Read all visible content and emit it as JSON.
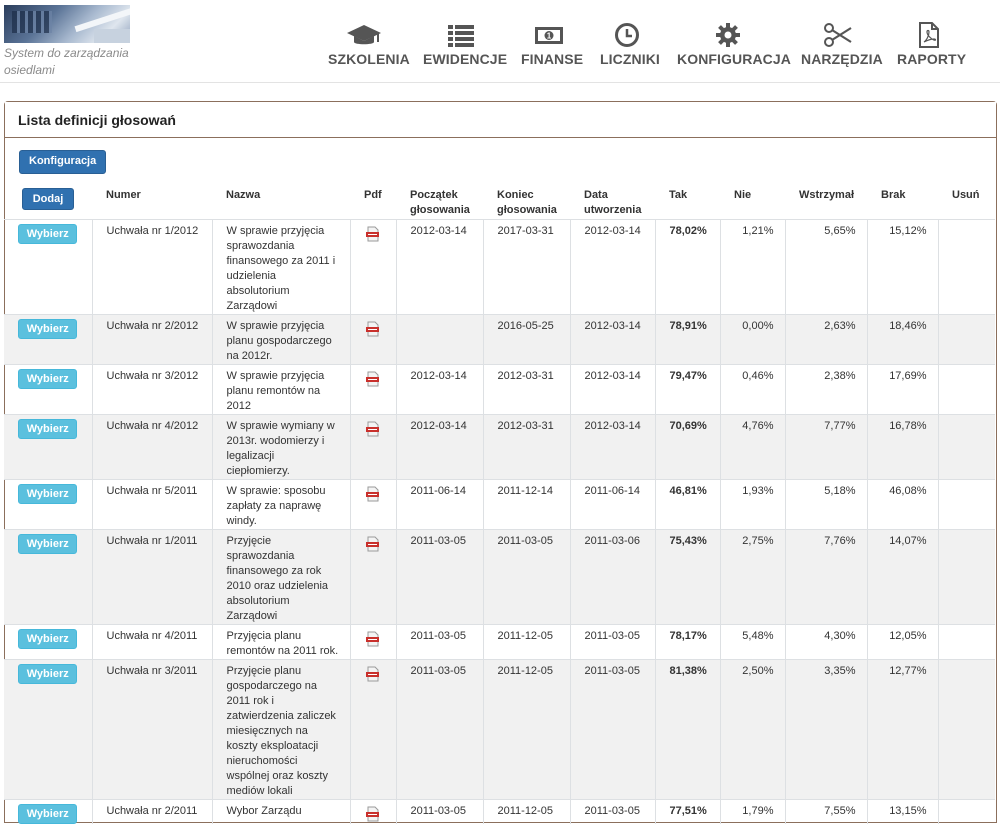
{
  "header": {
    "tagline": "System do zarządzania osiedlami",
    "nav": [
      {
        "label": "SZKOLENIA",
        "icon": "graduation-cap-icon"
      },
      {
        "label": "EWIDENCJE",
        "icon": "list-icon"
      },
      {
        "label": "FINANSE",
        "icon": "money-icon"
      },
      {
        "label": "LICZNIKI",
        "icon": "clock-icon"
      },
      {
        "label": "KONFIGURACJA",
        "icon": "gear-icon"
      },
      {
        "label": "NARZĘDZIA",
        "icon": "scissors-icon"
      },
      {
        "label": "RAPORTY",
        "icon": "pdf-file-icon"
      }
    ]
  },
  "panel": {
    "title": "Lista definicji głosowań",
    "config_button": "Konfiguracja"
  },
  "table": {
    "add_button": "Dodaj",
    "select_button": "Wybierz",
    "columns": [
      "Numer",
      "Nazwa",
      "Pdf",
      "Początek głosowania",
      "Koniec głosowania",
      "Data utworzenia",
      "Tak",
      "Nie",
      "Wstrzymał",
      "Brak",
      "Usuń"
    ],
    "rows": [
      {
        "numer": "Uchwała nr 1/2012",
        "nazwa": "W sprawie przyjęcia sprawozdania finansowego za 2011 i udzielenia absolutorium Zarządowi",
        "poczatek": "2012-03-14",
        "koniec": "2017-03-31",
        "utworzenia": "2012-03-14",
        "tak": "78,02%",
        "nie": "1,21%",
        "wstrzymal": "5,65%",
        "brak": "15,12%"
      },
      {
        "numer": "Uchwała nr 2/2012",
        "nazwa": "W sprawie przyjęcia planu gospodarczego na 2012r.",
        "poczatek": "",
        "koniec": "2016-05-25",
        "utworzenia": "2012-03-14",
        "tak": "78,91%",
        "nie": "0,00%",
        "wstrzymal": "2,63%",
        "brak": "18,46%"
      },
      {
        "numer": "Uchwała nr 3/2012",
        "nazwa": "W sprawie przyjęcia planu remontów na 2012",
        "poczatek": "2012-03-14",
        "koniec": "2012-03-31",
        "utworzenia": "2012-03-14",
        "tak": "79,47%",
        "nie": "0,46%",
        "wstrzymal": "2,38%",
        "brak": "17,69%"
      },
      {
        "numer": "Uchwała nr 4/2012",
        "nazwa": "W sprawie wymiany w 2013r. wodomierzy i legalizacji ciepłomierzy.",
        "poczatek": "2012-03-14",
        "koniec": "2012-03-31",
        "utworzenia": "2012-03-14",
        "tak": "70,69%",
        "nie": "4,76%",
        "wstrzymal": "7,77%",
        "brak": "16,78%"
      },
      {
        "numer": "Uchwała nr 5/2011",
        "nazwa": "W sprawie: sposobu zapłaty za naprawę windy.",
        "poczatek": "2011-06-14",
        "koniec": "2011-12-14",
        "utworzenia": "2011-06-14",
        "tak": "46,81%",
        "nie": "1,93%",
        "wstrzymal": "5,18%",
        "brak": "46,08%"
      },
      {
        "numer": "Uchwała nr 1/2011",
        "nazwa": "Przyjęcie sprawozdania finansowego za rok 2010 oraz udzielenia absolutorium Zarządowi",
        "poczatek": "2011-03-05",
        "koniec": "2011-03-05",
        "utworzenia": "2011-03-06",
        "tak": "75,43%",
        "nie": "2,75%",
        "wstrzymal": "7,76%",
        "brak": "14,07%"
      },
      {
        "numer": "Uchwała nr 4/2011",
        "nazwa": "Przyjęcia planu remontów na 2011 rok.",
        "poczatek": "2011-03-05",
        "koniec": "2011-12-05",
        "utworzenia": "2011-03-05",
        "tak": "78,17%",
        "nie": "5,48%",
        "wstrzymal": "4,30%",
        "brak": "12,05%"
      },
      {
        "numer": "Uchwała nr 3/2011",
        "nazwa": "Przyjęcie planu gospodarczego na 2011 rok i zatwierdzenia zaliczek miesięcznych na koszty eksploatacji nieruchomości wspólnej oraz koszty mediów lokali",
        "poczatek": "2011-03-05",
        "koniec": "2011-12-05",
        "utworzenia": "2011-03-05",
        "tak": "81,38%",
        "nie": "2,50%",
        "wstrzymal": "3,35%",
        "brak": "12,77%"
      },
      {
        "numer": "Uchwała nr 2/2011",
        "nazwa": "Wybor Zarządu",
        "poczatek": "2011-03-05",
        "koniec": "2011-12-05",
        "utworzenia": "2011-03-05",
        "tak": "77,51%",
        "nie": "1,79%",
        "wstrzymal": "7,55%",
        "brak": "13,15%"
      }
    ]
  }
}
